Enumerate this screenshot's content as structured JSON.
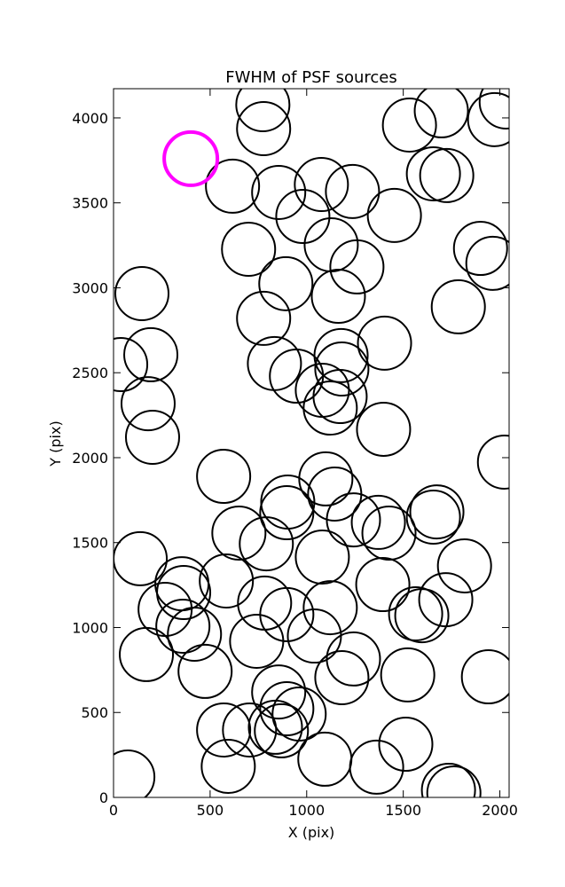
{
  "chart_data": {
    "type": "scatter",
    "title": "FWHM of PSF sources",
    "x_label": "X (pix)",
    "y_label": "Y (pix)",
    "xlim": [
      0,
      2048
    ],
    "ylim": [
      0,
      4172
    ],
    "xticks": [
      0,
      500,
      1000,
      1500,
      2000
    ],
    "yticks": [
      0,
      500,
      1000,
      1500,
      2000,
      2500,
      3000,
      3500,
      4000
    ],
    "series": [
      {
        "color": "#000000",
        "linewidth": 2,
        "x": [
          773,
          777,
          1532,
          1697,
          1973,
          2033,
          616,
          855,
          1076,
          1237,
          980,
          1454,
          1656,
          1725,
          699,
          1127,
          1260,
          1900,
          1964,
          892,
          1164,
          147,
          777,
          1785,
          193,
          37,
          1403,
          1178,
          833,
          947,
          1182,
          1081,
          1173,
          1122,
          179,
          202,
          1398,
          2024,
          570,
          1099,
          902,
          1145,
          897,
          1242,
          1371,
          1674,
          1656,
          1426,
          649,
          791,
          138,
          1081,
          1817,
          584,
          354,
          363,
          1394,
          782,
          1122,
          1720,
          267,
          1564,
          1596,
          897,
          359,
          419,
          741,
          1040,
          170,
          474,
          1242,
          1182,
          1523,
          1941,
          855,
          897,
          961,
          570,
          704,
          838,
          869,
          1513,
          1094,
          594,
          1362,
          74,
          1734,
          1762
        ],
        "y": [
          4078,
          3937,
          3958,
          4042,
          3990,
          4094,
          3598,
          3561,
          3608,
          3567,
          3420,
          3426,
          3671,
          3661,
          3227,
          3253,
          3123,
          3232,
          3144,
          3024,
          2950,
          2966,
          2820,
          2888,
          2606,
          2548,
          2674,
          2601,
          2554,
          2480,
          2522,
          2397,
          2360,
          2292,
          2318,
          2120,
          2167,
          1974,
          1890,
          1875,
          1739,
          1786,
          1676,
          1634,
          1619,
          1681,
          1650,
          1556,
          1556,
          1493,
          1405,
          1415,
          1363,
          1274,
          1258,
          1206,
          1253,
          1144,
          1117,
          1164,
          1107,
          1081,
          1070,
          1076,
          1008,
          961,
          919,
          950,
          841,
          742,
          815,
          705,
          721,
          710,
          621,
          522,
          491,
          397,
          397,
          413,
          392,
          313,
          225,
          183,
          178,
          120,
          42,
          26
        ]
      },
      {
        "color": "#ff00ff",
        "linewidth": 4,
        "x": [
          400
        ],
        "y": [
          3760
        ]
      }
    ]
  }
}
